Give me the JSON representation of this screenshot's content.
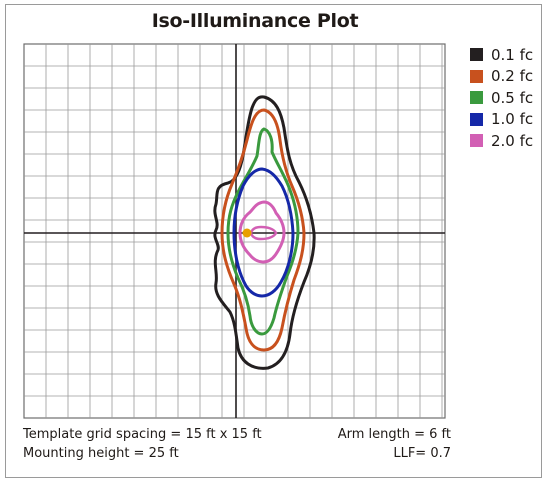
{
  "title": "Iso-Illuminance Plot",
  "legend": [
    {
      "label": "0.1 fc",
      "color": "#231f20"
    },
    {
      "label": "0.2 fc",
      "color": "#c8511e"
    },
    {
      "label": "0.5 fc",
      "color": "#3a9a3e"
    },
    {
      "label": "1.0 fc",
      "color": "#1528a8"
    },
    {
      "label": "2.0 fc",
      "color": "#d25fb4"
    }
  ],
  "notes": {
    "grid_spacing": "Template grid spacing = 15 ft x 15 ft",
    "mounting_height": "Mounting height = 25 ft",
    "arm_length": "Arm length = 6 ft",
    "llf": "LLF= 0.7"
  },
  "colors": {
    "grid": "#9a9a9a",
    "axis": "#231f20",
    "luminaire": "#e8a000"
  }
}
